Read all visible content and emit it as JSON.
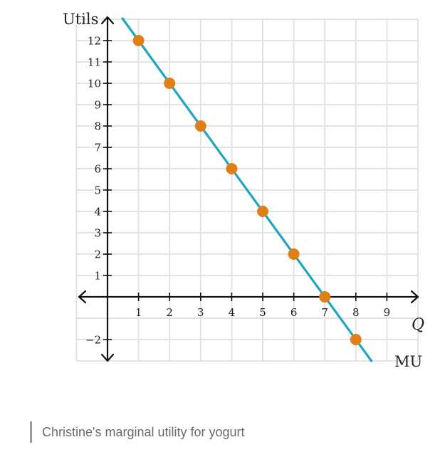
{
  "caption": "Christine's marginal utility for yogurt",
  "chart_data": {
    "type": "line",
    "title": "",
    "ylabel": "Utils",
    "xlabel": "Q",
    "xlim": [
      -1,
      9.9
    ],
    "ylim": [
      -3,
      13
    ],
    "x_ticks": [
      1,
      2,
      3,
      4,
      5,
      6,
      7,
      8,
      9
    ],
    "x_tick_labels": [
      "1",
      "2",
      "3",
      "4",
      "5",
      "6",
      "7",
      "8",
      "9"
    ],
    "y_ticks": [
      -2,
      1,
      2,
      3,
      4,
      5,
      6,
      7,
      8,
      9,
      10,
      11,
      12
    ],
    "y_tick_labels": [
      "−2",
      "1",
      "2",
      "3",
      "4",
      "5",
      "6",
      "7",
      "8",
      "9",
      "10",
      "11",
      "12"
    ],
    "grid": true,
    "series": [
      {
        "name": "MU",
        "color": "#1fa5bf",
        "line": {
          "slope": -2,
          "intercept": 14
        },
        "marker_color": "#e07f16",
        "points": [
          {
            "x": 1,
            "y": 12
          },
          {
            "x": 2,
            "y": 10
          },
          {
            "x": 3,
            "y": 8
          },
          {
            "x": 4,
            "y": 6
          },
          {
            "x": 5,
            "y": 4
          },
          {
            "x": 6,
            "y": 2
          },
          {
            "x": 7,
            "y": 0
          },
          {
            "x": 8,
            "y": -2
          }
        ]
      }
    ]
  }
}
